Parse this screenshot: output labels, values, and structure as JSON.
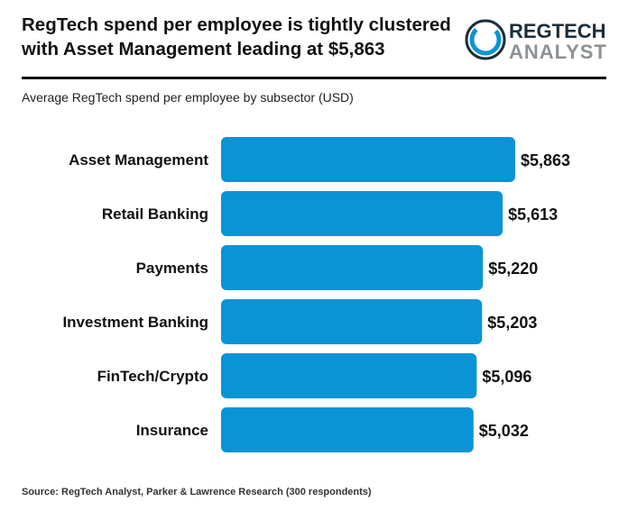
{
  "header": {
    "title_line1": "RegTech spend per employee is tightly clustered",
    "title_line2": "with Asset Management leading at $5,863",
    "subtitle": "Average RegTech spend per employee by subsector (USD)"
  },
  "logo": {
    "word1": "REGTECH",
    "word2": "ANALYST",
    "ring_color": "#0a94d6",
    "text_color_dark": "#1d2d3a",
    "text_color_light": "#8c9296"
  },
  "footer": {
    "source": "Source: RegTech Analyst, Parker & Lawrence Research (300 respondents)"
  },
  "colors": {
    "bar": "#0a94d6",
    "text": "#111111"
  },
  "chart_data": {
    "type": "bar",
    "orientation": "horizontal",
    "categories": [
      "Asset Management",
      "Retail Banking",
      "Payments",
      "Investment Banking",
      "FinTech/Crypto",
      "Insurance"
    ],
    "values": [
      5863,
      5613,
      5220,
      5203,
      5096,
      5032
    ],
    "value_labels": [
      "$5,863",
      "$5,613",
      "$5,220",
      "$5,203",
      "$5,096",
      "$5,032"
    ],
    "grid": false,
    "legend": "none"
  }
}
